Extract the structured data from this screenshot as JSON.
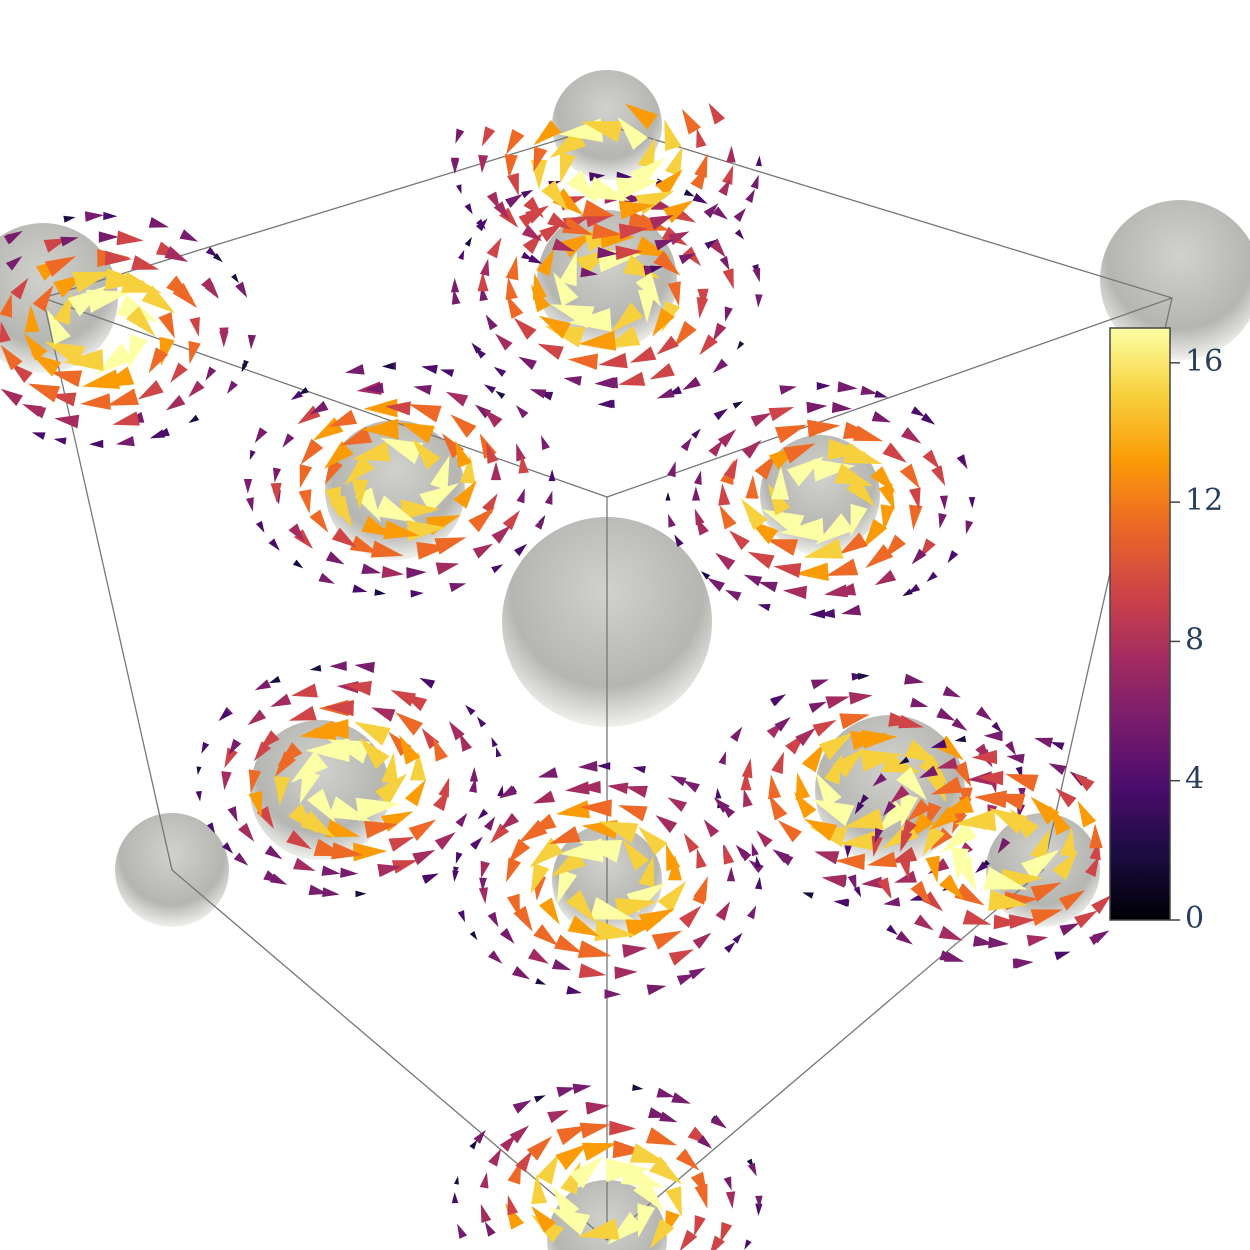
{
  "chart_data": {
    "type": "cone",
    "colorbar": {
      "cmin": 0,
      "cmax": 17,
      "ticks": [
        0,
        4,
        8,
        12,
        16
      ]
    },
    "colorscale": [
      "#000004",
      "#1b0c41",
      "#4a0c6b",
      "#781c6d",
      "#a52c60",
      "#cf4446",
      "#ed6925",
      "#fb9b06",
      "#f7d13d",
      "#fcffa4"
    ]
  }
}
